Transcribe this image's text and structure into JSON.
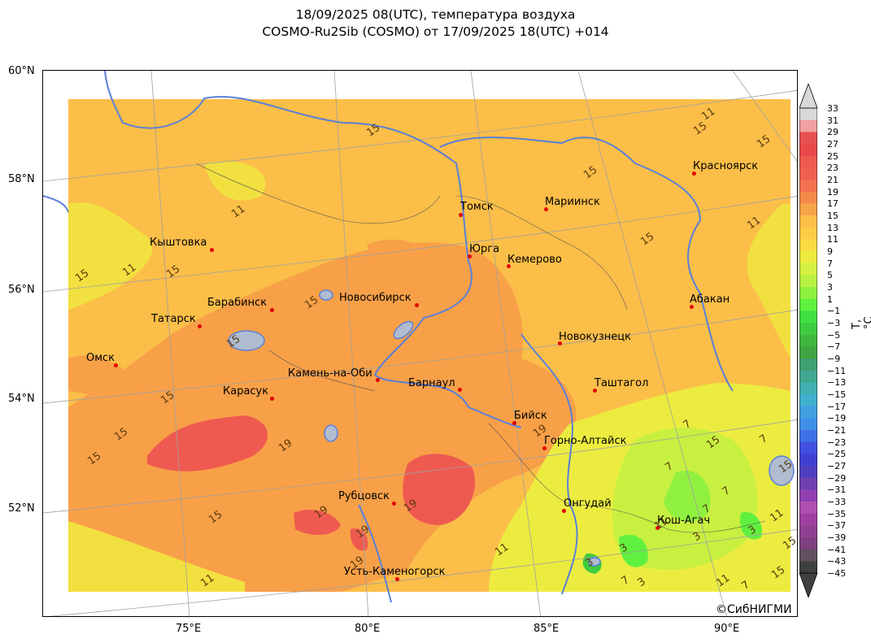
{
  "title": {
    "line1": "18/09/2025 08(UTC), температура воздуха",
    "line2": "COSMO-Ru2Sib (COSMO) от 17/09/2025 18(UTC) +014"
  },
  "axes": {
    "lat_labels": [
      "60°N",
      "58°N",
      "56°N",
      "54°N",
      "52°N"
    ],
    "lon_labels": [
      "75°E",
      "80°E",
      "85°E",
      "90°E"
    ]
  },
  "cities": [
    {
      "name": "Красноярск"
    },
    {
      "name": "Томск"
    },
    {
      "name": "Мариинск"
    },
    {
      "name": "Кыштовка"
    },
    {
      "name": "Юрга"
    },
    {
      "name": "Кемерово"
    },
    {
      "name": "Барабинск"
    },
    {
      "name": "Новосибирск"
    },
    {
      "name": "Абакан"
    },
    {
      "name": "Татарск"
    },
    {
      "name": "Новокузнецк"
    },
    {
      "name": "Омск"
    },
    {
      "name": "Камень-на-Оби"
    },
    {
      "name": "Барнаул"
    },
    {
      "name": "Таштагол"
    },
    {
      "name": "Карасук"
    },
    {
      "name": "Бийск"
    },
    {
      "name": "Горно-Алтайск"
    },
    {
      "name": "Рубцовск"
    },
    {
      "name": "Онгудай"
    },
    {
      "name": "Кош-Агач"
    },
    {
      "name": "Усть-Каменогорск"
    }
  ],
  "contour_labels": [
    "15",
    "11",
    "15",
    "15",
    "11",
    "15",
    "15",
    "15",
    "15",
    "15",
    "11",
    "15",
    "15",
    "11",
    "15",
    "19",
    "15",
    "19",
    "19",
    "19",
    "19",
    "19",
    "15",
    "11",
    "11",
    "7",
    "7",
    "7",
    "7",
    "3",
    "3",
    "3",
    "3",
    "7",
    "7",
    "3",
    "11",
    "15",
    "15",
    "11",
    "11",
    "15",
    "7",
    "15"
  ],
  "colorbar": {
    "unit": "T,°C",
    "ticks": [
      "33",
      "31",
      "29",
      "27",
      "25",
      "23",
      "21",
      "19",
      "17",
      "15",
      "13",
      "11",
      "9",
      "7",
      "5",
      "3",
      "1",
      "−1",
      "−3",
      "−5",
      "−7",
      "−9",
      "−11",
      "−13",
      "−15",
      "−17",
      "−19",
      "−21",
      "−23",
      "−25",
      "−27",
      "−29",
      "−31",
      "−33",
      "−35",
      "−37",
      "−39",
      "−41",
      "−43",
      "−45"
    ],
    "colors": [
      "#d9d9d9",
      "#f0a0a0",
      "#e85050",
      "#e84848",
      "#ee5a50",
      "#f06050",
      "#f47050",
      "#f48a4a",
      "#f8a448",
      "#fbbe48",
      "#fccb48",
      "#f8dc40",
      "#ecec40",
      "#d4f040",
      "#b8f040",
      "#90f040",
      "#60f040",
      "#40e040",
      "#40cc40",
      "#40b840",
      "#40a440",
      "#40a070",
      "#40a890",
      "#40b0b0",
      "#40b0d0",
      "#40a0e0",
      "#4090e8",
      "#4070e8",
      "#4050e0",
      "#4040d0",
      "#5040c0",
      "#7040b0",
      "#9040b0",
      "#b050b0",
      "#a040a0",
      "#904090",
      "#804080",
      "#605060",
      "#404040"
    ]
  },
  "copyright": "©СибНИГМИ"
}
